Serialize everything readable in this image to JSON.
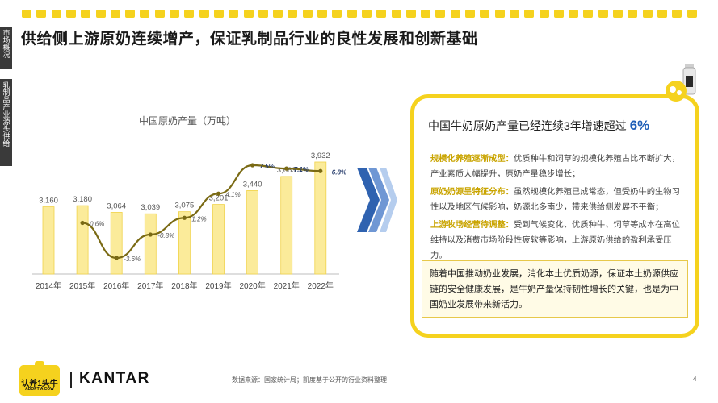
{
  "side_tabs": {
    "market": "市场概况",
    "supply": "乳制品产业源头供给"
  },
  "page_title": "供给侧上游原奶连续增产，保证乳制品行业的良性发展和创新基础",
  "chart_data": {
    "type": "bar",
    "title": "中国原奶产量（万吨）",
    "categories": [
      "2014年",
      "2015年",
      "2016年",
      "2017年",
      "2018年",
      "2019年",
      "2020年",
      "2021年",
      "2022年"
    ],
    "values": [
      3160,
      3180,
      3064,
      3039,
      3075,
      3201,
      3440,
      3683,
      3932
    ],
    "value_labels": [
      "3,160",
      "3,180",
      "3,064",
      "3,039",
      "3,075",
      "3,201",
      "3,440",
      "3,683",
      "3,932"
    ],
    "growth_series": {
      "categories": [
        "2015年",
        "2016年",
        "2017年",
        "2018年",
        "2019年",
        "2020年",
        "2021年",
        "2022年"
      ],
      "values": [
        0.6,
        -3.6,
        -0.8,
        1.2,
        4.1,
        7.5,
        7.1,
        6.8
      ],
      "labels": [
        "0.6%",
        "-3.6%",
        "-0.8%",
        "1.2%",
        "4.1%",
        "7.5%",
        "7.1%",
        "6.8%"
      ]
    },
    "colors": {
      "bar": "#fbeb9a",
      "bar_border": "#f1d34a",
      "line": "#7a6a14"
    },
    "grid": false
  },
  "card": {
    "title_prefix": "中国牛奶原奶产量已经连续3年增速超过",
    "title_pct": "6%",
    "p1_head": "规模化养殖逐渐成型：",
    "p1_body": "优质种牛和饲草的规模化养殖占比不断扩大，产业素质大幅提升，原奶产量稳步增长；",
    "p2_head": "原奶奶源呈特征分布：",
    "p2_body": "虽然规模化养殖已成常态，但受奶牛的生物习性以及地区气候影响，奶源北多南少，带来供给侧发展不平衡；",
    "p3_head": "上游牧场经营待调整：",
    "p3_body": "受到气候变化、优质种牛、饲草等成本在高位维持以及消费市场阶段性疲软等影响，上游原奶供给的盈利承受压力。",
    "box_text": "随着中国推动奶业发展，消化本土优质奶源，保证本土奶源供应链的安全健康发展，是牛奶产量保持韧性增长的关键，也是为中国奶业发展带来新活力。"
  },
  "footer": {
    "logo_cn": "认养1头牛",
    "logo_en": "ADOPT A COW",
    "kantar": "KANTAR",
    "source": "数据来源：国家统计局；凯度基于公开的行业资料整理",
    "page": "4"
  },
  "colors": {
    "accent_yellow": "#f5d21e",
    "accent_blue": "#1f5fb8",
    "highlight_gold": "#c9a400"
  }
}
